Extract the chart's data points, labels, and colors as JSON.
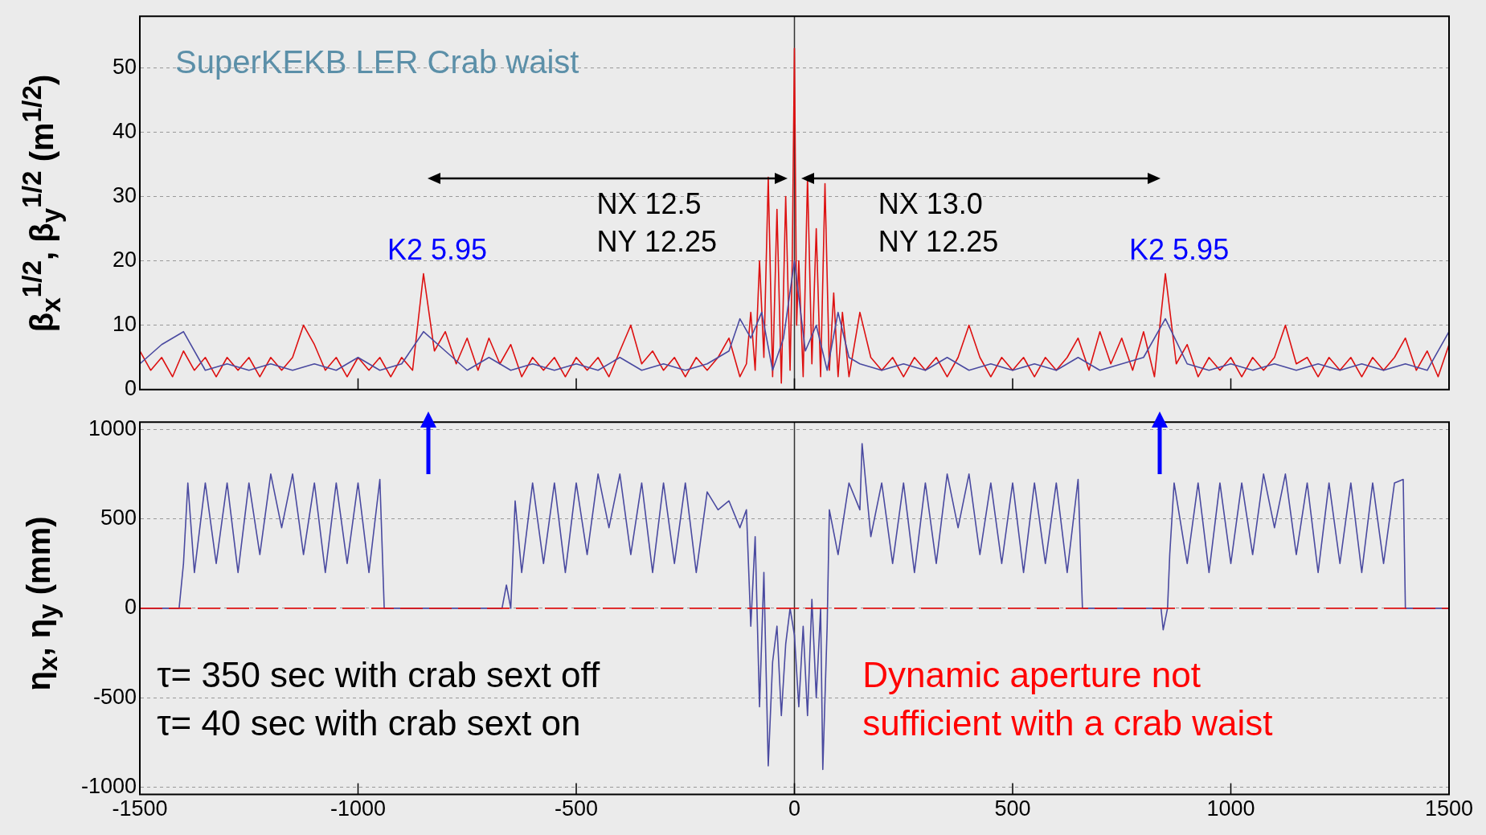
{
  "chart_data": [
    {
      "type": "line",
      "title": "SuperKEKB LER Crab waist",
      "ylabel": "β$_{x}$$^{1/2}$, β$_{y}$$^{1/2}$ (m$^{1/2}$)",
      "xlim": [
        -1500,
        1500
      ],
      "xticks": [
        -1500,
        -1000,
        -500,
        0,
        500,
        1000,
        1500
      ],
      "ylim": [
        0,
        58
      ],
      "yticks": [
        0,
        10,
        20,
        30,
        40,
        50
      ],
      "tick_labels": "y",
      "grid": "y",
      "ref_lines": [
        {
          "axis": "x",
          "value": 0,
          "color": "#333333"
        }
      ],
      "annotations": [
        "NX 12.5",
        "NY 12.25",
        "NX 13.0",
        "NY 12.25",
        {
          "text": "K2 5.95",
          "x": -850,
          "y": 18
        },
        {
          "text": "K2 5.95",
          "x": 850,
          "y": 18
        }
      ],
      "series": [
        {
          "color": "#4a4aa0",
          "x": [
            -1500,
            -1450,
            -1400,
            -1350,
            -1300,
            -1250,
            -1200,
            -1150,
            -1100,
            -1050,
            -1000,
            -950,
            -900,
            -850,
            -800,
            -750,
            -700,
            -650,
            -600,
            -550,
            -500,
            -450,
            -400,
            -350,
            -300,
            -250,
            -200,
            -150,
            -125,
            -100,
            -75,
            -50,
            -25,
            0,
            25,
            50,
            75,
            100,
            125,
            150,
            200,
            250,
            300,
            350,
            400,
            450,
            500,
            550,
            600,
            650,
            700,
            750,
            800,
            850,
            900,
            950,
            1000,
            1050,
            1100,
            1150,
            1200,
            1250,
            1300,
            1350,
            1400,
            1450,
            1500
          ],
          "values": [
            4,
            7,
            9,
            3,
            4,
            3,
            4,
            3,
            4,
            3,
            5,
            3,
            4,
            9,
            6,
            3,
            5,
            3,
            4,
            3,
            4,
            3,
            5,
            3,
            4,
            3,
            4,
            6,
            11,
            8,
            12,
            3,
            8,
            20,
            6,
            10,
            3,
            12,
            5,
            4,
            3,
            4,
            3,
            5,
            3,
            4,
            3,
            4,
            3,
            5,
            3,
            4,
            5,
            11,
            4,
            3,
            4,
            3,
            4,
            3,
            4,
            3,
            4,
            3,
            4,
            3,
            9
          ]
        },
        {
          "color": "#dd1111",
          "x": [
            -1500,
            -1475,
            -1450,
            -1425,
            -1400,
            -1375,
            -1350,
            -1325,
            -1300,
            -1275,
            -1250,
            -1225,
            -1200,
            -1175,
            -1150,
            -1125,
            -1100,
            -1075,
            -1050,
            -1025,
            -1000,
            -975,
            -950,
            -925,
            -900,
            -875,
            -850,
            -825,
            -800,
            -775,
            -750,
            -725,
            -700,
            -675,
            -650,
            -625,
            -600,
            -575,
            -550,
            -525,
            -500,
            -475,
            -450,
            -425,
            -400,
            -375,
            -350,
            -325,
            -300,
            -275,
            -250,
            -225,
            -200,
            -175,
            -150,
            -125,
            -110,
            -100,
            -90,
            -80,
            -70,
            -60,
            -50,
            -40,
            -30,
            -20,
            -10,
            -5,
            0,
            5,
            10,
            20,
            30,
            40,
            50,
            60,
            70,
            80,
            90,
            100,
            110,
            125,
            150,
            175,
            200,
            225,
            250,
            275,
            300,
            325,
            350,
            375,
            400,
            425,
            450,
            475,
            500,
            525,
            550,
            575,
            600,
            625,
            650,
            675,
            700,
            725,
            750,
            775,
            800,
            825,
            850,
            875,
            900,
            925,
            950,
            975,
            1000,
            1025,
            1050,
            1075,
            1100,
            1125,
            1150,
            1175,
            1200,
            1225,
            1250,
            1275,
            1300,
            1325,
            1350,
            1375,
            1400,
            1425,
            1450,
            1475,
            1500
          ],
          "values": [
            6,
            3,
            5,
            2,
            6,
            3,
            5,
            2,
            5,
            3,
            5,
            2,
            5,
            3,
            5,
            10,
            7,
            3,
            5,
            2,
            5,
            3,
            5,
            2,
            5,
            3,
            18,
            6,
            9,
            4,
            8,
            3,
            8,
            4,
            7,
            2,
            5,
            3,
            5,
            2,
            5,
            3,
            5,
            2,
            6,
            10,
            4,
            6,
            3,
            5,
            2,
            5,
            3,
            5,
            8,
            2,
            4,
            12,
            3,
            20,
            5,
            33,
            2,
            28,
            1,
            30,
            3,
            20,
            53,
            10,
            20,
            2,
            33,
            4,
            25,
            2,
            32,
            3,
            15,
            2,
            12,
            2,
            12,
            5,
            3,
            5,
            2,
            5,
            3,
            5,
            2,
            5,
            10,
            5,
            2,
            5,
            3,
            5,
            2,
            5,
            3,
            5,
            8,
            3,
            9,
            4,
            8,
            3,
            9,
            2,
            18,
            4,
            7,
            2,
            5,
            3,
            5,
            2,
            5,
            3,
            5,
            10,
            4,
            5,
            2,
            5,
            3,
            5,
            2,
            5,
            3,
            5,
            8,
            3,
            6,
            2,
            7
          ]
        }
      ]
    },
    {
      "type": "line",
      "ylabel": "η$_{x}$, η$_{y}$ (mm)",
      "xlim": [
        -1500,
        1500
      ],
      "xticks": [
        -1500,
        -1000,
        -500,
        0,
        500,
        1000,
        1500
      ],
      "ylim": [
        -1040,
        1040
      ],
      "yticks": [
        -1000,
        -500,
        0,
        500,
        1000
      ],
      "grid": "y",
      "ref_lines": [
        {
          "axis": "x",
          "value": 0,
          "color": "#333333"
        }
      ],
      "annotations": [
        "τ= 350 sec with crab sext off",
        "τ= 40 sec with crab sext on",
        "Dynamic aperture not",
        "sufficient with a crab waist"
      ],
      "series": [
        {
          "color": "#dd1111",
          "line_style": "dashed",
          "x": [
            -1500,
            1500
          ],
          "values": [
            0,
            0
          ]
        },
        {
          "color": "#4a4aa0",
          "x": [
            -1500,
            -1410,
            -1400,
            -1390,
            -1375,
            -1350,
            -1325,
            -1300,
            -1275,
            -1250,
            -1225,
            -1200,
            -1175,
            -1150,
            -1125,
            -1100,
            -1075,
            -1050,
            -1025,
            -1000,
            -975,
            -950,
            -940,
            -670,
            -660,
            -650,
            -640,
            -625,
            -600,
            -575,
            -550,
            -525,
            -500,
            -475,
            -450,
            -425,
            -400,
            -375,
            -350,
            -325,
            -300,
            -275,
            -250,
            -225,
            -200,
            -175,
            -150,
            -125,
            -110,
            -100,
            -90,
            -80,
            -70,
            -60,
            -50,
            -40,
            -30,
            -20,
            -10,
            0,
            10,
            20,
            30,
            40,
            50,
            60,
            65,
            75,
            80,
            100,
            125,
            150,
            155,
            175,
            200,
            225,
            250,
            275,
            300,
            325,
            350,
            375,
            400,
            425,
            450,
            475,
            500,
            525,
            550,
            575,
            600,
            625,
            650,
            660,
            840,
            845,
            855,
            860,
            870,
            900,
            925,
            950,
            975,
            1000,
            1025,
            1050,
            1075,
            1100,
            1125,
            1150,
            1175,
            1200,
            1225,
            1250,
            1275,
            1300,
            1325,
            1350,
            1375,
            1395,
            1400,
            1500
          ],
          "values": [
            0,
            0,
            250,
            700,
            200,
            700,
            250,
            700,
            200,
            700,
            300,
            750,
            450,
            750,
            300,
            700,
            200,
            700,
            250,
            700,
            200,
            720,
            0,
            0,
            130,
            0,
            600,
            200,
            700,
            250,
            700,
            200,
            700,
            300,
            750,
            450,
            750,
            300,
            700,
            200,
            700,
            250,
            700,
            200,
            650,
            550,
            600,
            450,
            550,
            -100,
            400,
            -550,
            200,
            -880,
            -300,
            -100,
            -600,
            -200,
            0,
            -150,
            -550,
            -100,
            -600,
            50,
            -500,
            0,
            -900,
            -100,
            550,
            300,
            700,
            550,
            920,
            400,
            700,
            250,
            700,
            200,
            700,
            250,
            750,
            450,
            750,
            300,
            700,
            250,
            700,
            200,
            700,
            250,
            700,
            200,
            720,
            0,
            0,
            -120,
            0,
            300,
            700,
            250,
            700,
            200,
            700,
            250,
            700,
            300,
            750,
            450,
            750,
            300,
            700,
            200,
            700,
            250,
            700,
            200,
            700,
            250,
            700,
            720,
            0,
            0
          ]
        }
      ]
    }
  ]
}
